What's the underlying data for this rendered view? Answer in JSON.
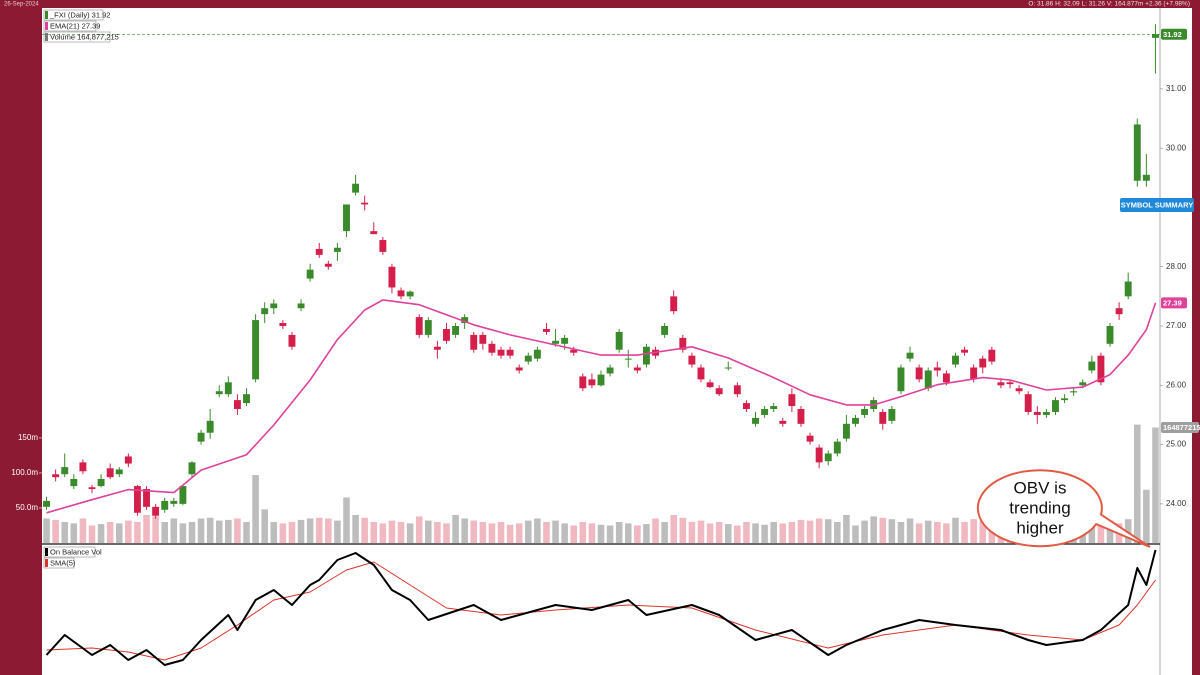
{
  "top_bar": {
    "date": "26-Sep-2024",
    "quote": "O: 31.86   H: 32.09   L: 31.26   V: 164.877m   +2.36 (+7.98%)"
  },
  "chart_data": {
    "type": "candlestick",
    "legend": [
      "_FXI (Daily) 31.92",
      "EMA(21) 27.39",
      "Volume 164,877,215"
    ],
    "colors": {
      "up": "#3a8a2c",
      "down": "#d41f4b",
      "volume_up": "#bdbdbd",
      "volume_down": "#f0b8c0",
      "ema": "#e0419b",
      "obv": "#000000",
      "sma": "#d9342b",
      "badge": "#9e9e9e"
    },
    "ylim": [
      23.34,
      32.33
    ],
    "yticks": [
      {
        "value": 24,
        "label": "24.00"
      },
      {
        "value": 25,
        "label": "25.00"
      },
      {
        "value": 26,
        "label": "26.00"
      },
      {
        "value": 27,
        "label": "27.00"
      },
      {
        "value": 28,
        "label": "28.00"
      },
      {
        "value": 30,
        "label": "30.00"
      },
      {
        "value": 31,
        "label": "31.00"
      }
    ],
    "candles": [
      [
        23.95,
        24.12,
        23.9,
        24.05
      ],
      [
        24.5,
        24.58,
        24.38,
        24.45
      ],
      [
        24.5,
        24.85,
        24.45,
        24.62
      ],
      [
        24.3,
        24.5,
        24.25,
        24.42
      ],
      [
        24.7,
        24.75,
        24.5,
        24.55
      ],
      [
        24.28,
        24.32,
        24.18,
        24.25
      ],
      [
        24.3,
        24.5,
        24.28,
        24.42
      ],
      [
        24.6,
        24.68,
        24.42,
        24.45
      ],
      [
        24.5,
        24.62,
        24.45,
        24.58
      ],
      [
        24.8,
        24.85,
        24.62,
        24.68
      ],
      [
        24.3,
        24.32,
        23.8,
        23.85
      ],
      [
        24.25,
        24.3,
        23.9,
        23.95
      ],
      [
        23.95,
        24.0,
        23.75,
        23.8
      ],
      [
        23.9,
        24.1,
        23.85,
        24.05
      ],
      [
        24.0,
        24.1,
        23.95,
        24.05
      ],
      [
        24.0,
        24.32,
        23.98,
        24.3
      ],
      [
        24.5,
        24.72,
        24.45,
        24.7
      ],
      [
        25.05,
        25.25,
        25.0,
        25.2
      ],
      [
        25.2,
        25.6,
        25.1,
        25.4
      ],
      [
        25.85,
        26.0,
        25.8,
        25.9
      ],
      [
        25.85,
        26.15,
        25.8,
        26.05
      ],
      [
        25.75,
        25.85,
        25.5,
        25.6
      ],
      [
        25.7,
        25.95,
        25.65,
        25.85
      ],
      [
        26.1,
        27.2,
        26.05,
        27.1
      ],
      [
        27.2,
        27.4,
        27.05,
        27.3
      ],
      [
        27.3,
        27.45,
        27.2,
        27.38
      ],
      [
        27.05,
        27.1,
        26.95,
        27.0
      ],
      [
        26.85,
        26.9,
        26.6,
        26.65
      ],
      [
        27.3,
        27.45,
        27.25,
        27.38
      ],
      [
        27.8,
        28.05,
        27.75,
        27.95
      ],
      [
        28.3,
        28.4,
        28.15,
        28.2
      ],
      [
        28.05,
        28.1,
        27.95,
        28.0
      ],
      [
        28.25,
        28.4,
        28.1,
        28.32
      ],
      [
        28.6,
        29.05,
        28.5,
        29.05
      ],
      [
        29.25,
        29.55,
        29.2,
        29.4
      ],
      [
        29.08,
        29.2,
        28.95,
        29.05
      ],
      [
        28.6,
        28.75,
        28.55,
        28.55
      ],
      [
        28.45,
        28.5,
        28.2,
        28.25
      ],
      [
        28.0,
        28.05,
        27.55,
        27.65
      ],
      [
        27.6,
        27.65,
        27.45,
        27.5
      ],
      [
        27.5,
        27.6,
        27.45,
        27.58
      ],
      [
        27.15,
        27.2,
        26.8,
        26.85
      ],
      [
        26.85,
        27.15,
        26.8,
        27.1
      ],
      [
        26.65,
        26.75,
        26.45,
        26.6
      ],
      [
        26.95,
        27.05,
        26.7,
        26.75
      ],
      [
        26.85,
        27.05,
        26.8,
        27.0
      ],
      [
        27.05,
        27.2,
        26.95,
        27.15
      ],
      [
        26.85,
        26.9,
        26.55,
        26.6
      ],
      [
        26.85,
        26.9,
        26.6,
        26.7
      ],
      [
        26.7,
        26.75,
        26.5,
        26.55
      ],
      [
        26.6,
        26.65,
        26.45,
        26.5
      ],
      [
        26.6,
        26.65,
        26.45,
        26.5
      ],
      [
        26.3,
        26.35,
        26.2,
        26.25
      ],
      [
        26.4,
        26.55,
        26.35,
        26.5
      ],
      [
        26.45,
        26.65,
        26.4,
        26.6
      ],
      [
        26.95,
        27.05,
        26.85,
        26.9
      ],
      [
        26.7,
        26.95,
        26.65,
        26.75
      ],
      [
        26.7,
        26.85,
        26.6,
        26.8
      ],
      [
        26.6,
        26.65,
        26.5,
        26.55
      ],
      [
        26.15,
        26.2,
        25.9,
        25.95
      ],
      [
        26.1,
        26.2,
        25.95,
        26.0
      ],
      [
        26.0,
        26.25,
        25.98,
        26.18
      ],
      [
        26.2,
        26.35,
        26.15,
        26.3
      ],
      [
        26.6,
        26.95,
        26.55,
        26.9
      ],
      [
        26.45,
        26.6,
        26.3,
        26.45
      ],
      [
        26.3,
        26.35,
        26.2,
        26.25
      ],
      [
        26.35,
        26.7,
        26.3,
        26.65
      ],
      [
        26.6,
        26.65,
        26.45,
        26.5
      ],
      [
        26.85,
        27.05,
        26.8,
        27.0
      ],
      [
        27.5,
        27.6,
        27.2,
        27.25
      ],
      [
        26.8,
        26.85,
        26.55,
        26.6
      ],
      [
        26.5,
        26.55,
        26.3,
        26.35
      ],
      [
        26.3,
        26.35,
        26.05,
        26.1
      ],
      [
        26.05,
        26.1,
        25.95,
        25.97
      ],
      [
        25.95,
        26.0,
        25.82,
        25.85
      ],
      [
        26.3,
        26.4,
        26.25,
        26.3
      ],
      [
        26.0,
        26.05,
        25.8,
        25.85
      ],
      [
        25.7,
        25.75,
        25.55,
        25.6
      ],
      [
        25.35,
        25.55,
        25.3,
        25.45
      ],
      [
        25.5,
        25.65,
        25.45,
        25.6
      ],
      [
        25.6,
        25.7,
        25.55,
        25.65
      ],
      [
        25.4,
        25.45,
        25.3,
        25.35
      ],
      [
        25.85,
        25.95,
        25.55,
        25.65
      ],
      [
        25.6,
        25.65,
        25.3,
        25.35
      ],
      [
        25.15,
        25.2,
        25.0,
        25.05
      ],
      [
        24.95,
        25.0,
        24.6,
        24.7
      ],
      [
        24.72,
        24.9,
        24.65,
        24.85
      ],
      [
        24.85,
        25.1,
        24.8,
        25.05
      ],
      [
        25.1,
        25.5,
        25.05,
        25.35
      ],
      [
        25.35,
        25.5,
        25.3,
        25.45
      ],
      [
        25.5,
        25.65,
        25.45,
        25.6
      ],
      [
        25.6,
        25.8,
        25.55,
        25.75
      ],
      [
        25.55,
        25.6,
        25.25,
        25.35
      ],
      [
        25.4,
        25.65,
        25.35,
        25.6
      ],
      [
        25.9,
        26.35,
        25.85,
        26.3
      ],
      [
        26.45,
        26.65,
        26.4,
        26.55
      ],
      [
        26.3,
        26.35,
        26.05,
        26.1
      ],
      [
        25.95,
        26.3,
        25.9,
        26.25
      ],
      [
        26.3,
        26.4,
        26.15,
        26.25
      ],
      [
        26.2,
        26.25,
        26.0,
        26.05
      ],
      [
        26.35,
        26.55,
        26.3,
        26.5
      ],
      [
        26.6,
        26.65,
        26.5,
        26.55
      ],
      [
        26.3,
        26.35,
        26.05,
        26.1
      ],
      [
        26.45,
        26.5,
        26.2,
        26.3
      ],
      [
        26.6,
        26.65,
        26.35,
        26.4
      ],
      [
        26.05,
        26.12,
        25.95,
        26.0
      ],
      [
        26.05,
        26.1,
        25.95,
        26.02
      ],
      [
        25.95,
        26.0,
        25.85,
        25.9
      ],
      [
        25.85,
        25.9,
        25.5,
        25.55
      ],
      [
        25.55,
        25.65,
        25.35,
        25.5
      ],
      [
        25.5,
        25.6,
        25.45,
        25.55
      ],
      [
        25.55,
        25.8,
        25.5,
        25.75
      ],
      [
        25.75,
        25.85,
        25.7,
        25.78
      ],
      [
        25.88,
        25.95,
        25.82,
        25.9
      ],
      [
        26.0,
        26.1,
        25.95,
        26.05
      ],
      [
        26.25,
        26.5,
        26.2,
        26.4
      ],
      [
        26.5,
        26.55,
        26.0,
        26.05
      ],
      [
        26.7,
        27.05,
        26.65,
        27.0
      ],
      [
        27.3,
        27.4,
        27.1,
        27.2
      ],
      [
        27.5,
        27.9,
        27.45,
        27.75
      ],
      [
        29.45,
        30.5,
        29.35,
        30.4
      ],
      [
        29.45,
        29.9,
        29.35,
        29.55
      ],
      [
        31.86,
        32.09,
        31.26,
        31.92
      ]
    ],
    "volume": {
      "ylim": [
        0,
        761
      ],
      "yticks": [
        {
          "value": 50,
          "label": "50.0m"
        },
        {
          "value": 100,
          "label": "100.0m"
        },
        {
          "value": 150,
          "label": "150m"
        }
      ],
      "values": [
        35,
        33,
        30,
        28,
        35,
        25,
        27,
        30,
        28,
        32,
        30,
        40,
        38,
        30,
        35,
        28,
        30,
        35,
        36,
        32,
        33,
        35,
        30,
        97,
        48,
        30,
        28,
        30,
        33,
        35,
        36,
        35,
        32,
        65,
        40,
        36,
        30,
        28,
        32,
        30,
        28,
        38,
        32,
        30,
        28,
        40,
        35,
        32,
        30,
        28,
        30,
        26,
        28,
        32,
        35,
        30,
        32,
        28,
        25,
        30,
        28,
        26,
        25,
        30,
        28,
        25,
        27,
        35,
        30,
        40,
        36,
        30,
        32,
        28,
        30,
        27,
        25,
        30,
        28,
        26,
        30,
        28,
        30,
        33,
        32,
        35,
        34,
        30,
        40,
        25,
        32,
        38,
        36,
        34,
        30,
        35,
        28,
        32,
        30,
        28,
        36,
        30,
        34,
        32,
        30,
        28,
        34,
        25,
        28,
        30,
        40,
        26,
        27,
        25,
        30,
        28,
        34,
        32,
        28,
        34,
        169,
        76,
        164.877215
      ]
    },
    "ema": {
      "name": "EMA(21)",
      "x": [
        0,
        5,
        9,
        14,
        17,
        22,
        25,
        29,
        32,
        35,
        37,
        41,
        44,
        47,
        51,
        56,
        61,
        65,
        71,
        75,
        80,
        84,
        88,
        91,
        94,
        98,
        103,
        106,
        110,
        114,
        117,
        119,
        121,
        122
      ],
      "values": [
        23.85,
        24.07,
        24.24,
        24.19,
        24.57,
        24.83,
        25.33,
        26.09,
        26.77,
        27.27,
        27.44,
        27.36,
        27.19,
        27.02,
        26.85,
        26.68,
        26.51,
        26.51,
        26.65,
        26.46,
        26.13,
        25.84,
        25.67,
        25.67,
        25.81,
        26.01,
        26.13,
        26.09,
        25.92,
        25.97,
        26.18,
        26.51,
        26.94,
        27.39
      ]
    },
    "price_badge": {
      "value": 31.92,
      "label": "31.92"
    },
    "ema_badge": {
      "value": 27.39,
      "label": "27.39"
    },
    "volume_badge": {
      "value": 164.877215,
      "label": "164877215"
    },
    "button": "SYMBOL SUMMARY",
    "obv": {
      "title": "On Balance Vol",
      "ylim": [
        0,
        125
      ],
      "x": [
        0,
        2,
        5,
        7,
        9,
        11,
        13,
        15,
        17,
        20,
        21,
        23,
        25,
        27,
        29,
        30,
        32,
        34,
        36,
        38,
        40,
        42,
        47,
        50,
        52,
        56,
        60,
        64,
        66,
        71,
        74,
        78,
        82,
        86,
        88,
        92,
        96,
        100,
        105,
        108,
        110,
        114,
        116,
        119,
        120,
        121,
        122
      ],
      "values": [
        15,
        35,
        15,
        25,
        10,
        20,
        5,
        10,
        30,
        55,
        40,
        70,
        80,
        65,
        85,
        90,
        110,
        117,
        105,
        80,
        70,
        50,
        65,
        50,
        55,
        65,
        60,
        70,
        55,
        65,
        55,
        30,
        40,
        15,
        25,
        40,
        50,
        45,
        40,
        30,
        25,
        30,
        40,
        65,
        102,
        85,
        120
      ]
    },
    "sma": {
      "name": "SMA(5)",
      "x": [
        0,
        5,
        9,
        13,
        17,
        21,
        25,
        29,
        33,
        36,
        40,
        44,
        50,
        56,
        64,
        71,
        78,
        86,
        92,
        100,
        108,
        114,
        118,
        120,
        122
      ],
      "values": [
        20,
        22,
        18,
        10,
        22,
        45,
        70,
        78,
        100,
        108,
        85,
        62,
        55,
        60,
        65,
        62,
        40,
        22,
        35,
        45,
        35,
        30,
        45,
        65,
        90
      ]
    },
    "annotation": [
      "OBV is",
      "trending",
      "higher"
    ]
  }
}
